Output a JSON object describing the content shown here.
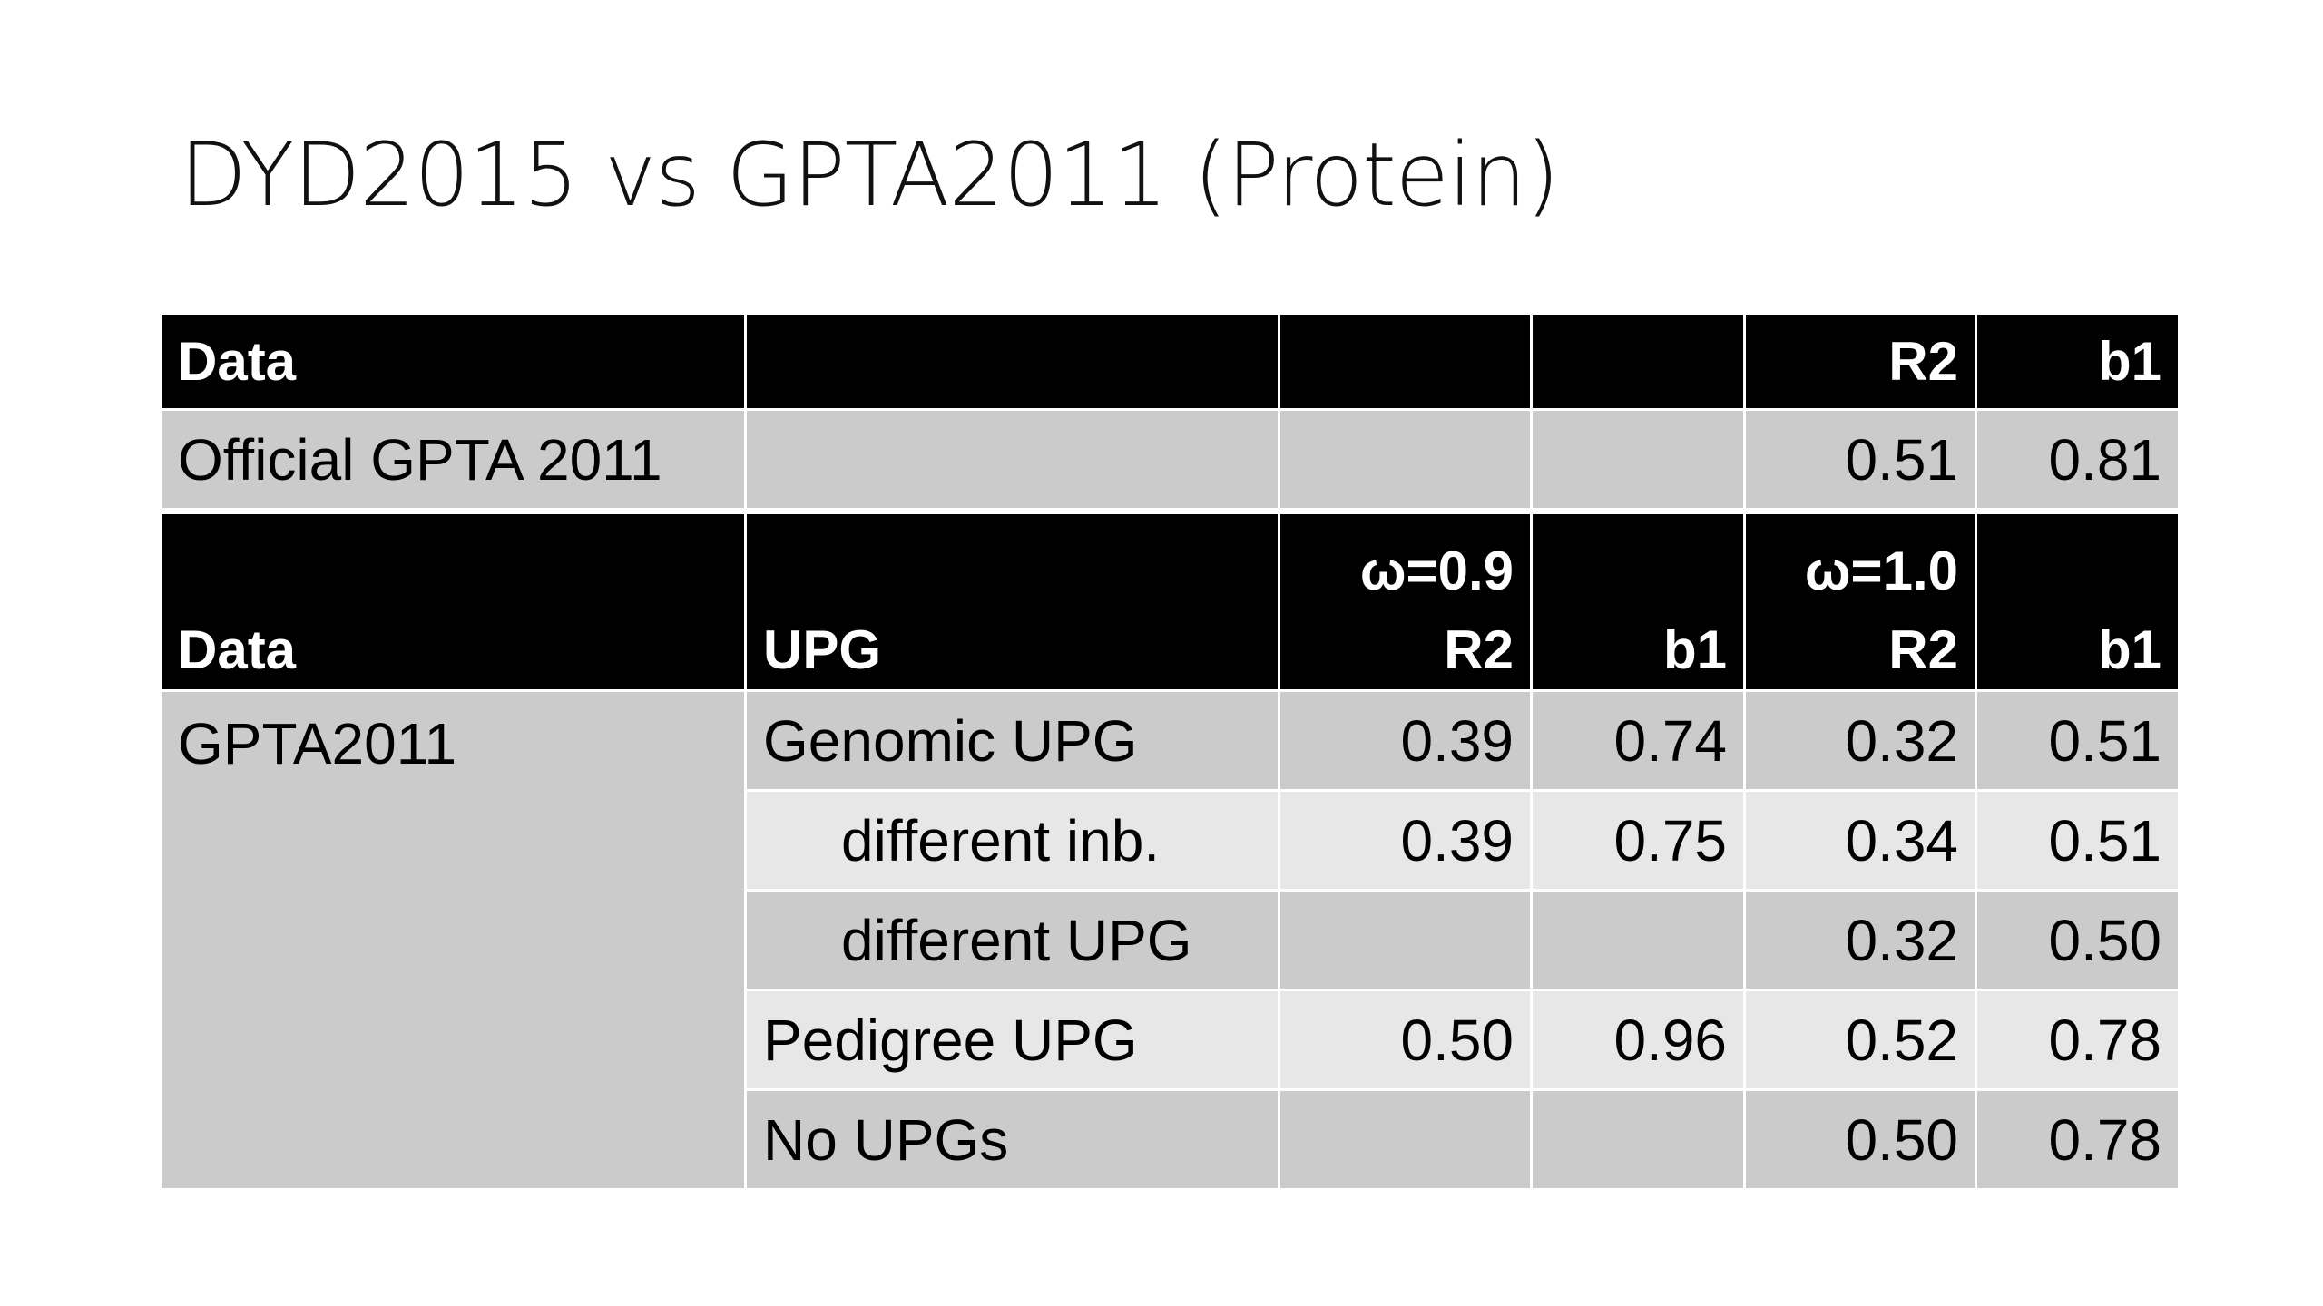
{
  "slide": {
    "title": "DYD2015 vs GPTA2011 (Protein)"
  },
  "table": {
    "header1": [
      "Data",
      "",
      "",
      "",
      "R2",
      "b1"
    ],
    "official_row": {
      "label": "Official GPTA 2011",
      "r2": "0.51",
      "b1": "0.81"
    },
    "header2": {
      "data": "Data",
      "upg": "UPG",
      "w09_top": "ω=0.9",
      "w09_r2": "R2",
      "w09_b1": "b1",
      "w10_top": "ω=1.0",
      "w10_r2": "R2",
      "w10_b1": "b1"
    },
    "group_label": "GPTA2011",
    "rows": [
      {
        "upg": "Genomic UPG",
        "r2_09": "0.39",
        "b1_09": "0.74",
        "r2_10": "0.32",
        "b1_10": "0.51"
      },
      {
        "upg": "different inb.",
        "r2_09": "0.39",
        "b1_09": "0.75",
        "r2_10": "0.34",
        "b1_10": "0.51"
      },
      {
        "upg": "different UPG",
        "r2_09": "",
        "b1_09": "",
        "r2_10": "0.32",
        "b1_10": "0.50"
      },
      {
        "upg": "Pedigree UPG",
        "r2_09": "0.50",
        "b1_09": "0.96",
        "r2_10": "0.52",
        "b1_10": "0.78"
      },
      {
        "upg": "No UPGs",
        "r2_09": "",
        "b1_09": "",
        "r2_10": "0.50",
        "b1_10": "0.78"
      }
    ]
  }
}
